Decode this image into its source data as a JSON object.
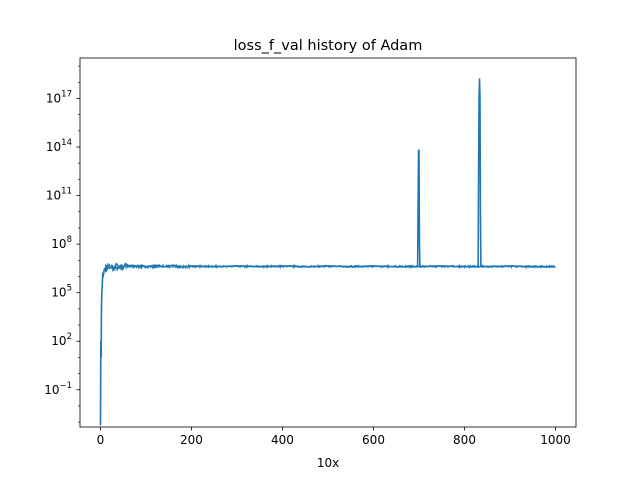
{
  "chart_data": {
    "type": "line",
    "title": "loss_f_val history of Adam",
    "xlabel": "10x",
    "ylabel": "",
    "yscale": "log",
    "xlim": [
      -45,
      1045
    ],
    "ylim_log10": [
      -3.3,
      19.5
    ],
    "grid": false,
    "series_color": "#1f77b4",
    "x_ticks": [
      0,
      200,
      400,
      600,
      800,
      1000
    ],
    "y_ticks": [
      {
        "exp": -1,
        "base": "10",
        "sup": "−1"
      },
      {
        "exp": 2,
        "base": "10",
        "sup": "2"
      },
      {
        "exp": 5,
        "base": "10",
        "sup": "5"
      },
      {
        "exp": 8,
        "base": "10",
        "sup": "8"
      },
      {
        "exp": 11,
        "base": "10",
        "sup": "11"
      },
      {
        "exp": 14,
        "base": "10",
        "sup": "14"
      },
      {
        "exp": 17,
        "base": "10",
        "sup": "17"
      }
    ],
    "series": [
      {
        "x": [
          0,
          0.3,
          0.6,
          1,
          1.5,
          2,
          2.5,
          3,
          4,
          5,
          6,
          8,
          10,
          12,
          15,
          20,
          25,
          30,
          35,
          40,
          45,
          50,
          55,
          60,
          65,
          70,
          80,
          90,
          100,
          120,
          140,
          160,
          180,
          200,
          250,
          300,
          350,
          400,
          450,
          500,
          550,
          600,
          650,
          697,
          698,
          699,
          700,
          701,
          702,
          750,
          800,
          830,
          831,
          832,
          833,
          834,
          835,
          836,
          900,
          950,
          1000
        ],
        "log10_y": [
          -3.2,
          -1.5,
          1.5,
          2.0,
          1.0,
          3.5,
          4.5,
          5.0,
          5.5,
          6.2,
          6.0,
          6.4,
          6.5,
          6.3,
          6.6,
          6.5,
          6.7,
          6.5,
          6.8,
          6.6,
          6.7,
          6.6,
          6.8,
          6.7,
          6.6,
          6.7,
          6.6,
          6.7,
          6.6,
          6.7,
          6.6,
          6.7,
          6.6,
          6.65,
          6.6,
          6.65,
          6.6,
          6.65,
          6.6,
          6.65,
          6.6,
          6.65,
          6.6,
          6.6,
          10.5,
          13.8,
          13.8,
          8.0,
          6.6,
          6.65,
          6.6,
          6.6,
          13.0,
          17.2,
          18.2,
          17.0,
          10.0,
          6.6,
          6.65,
          6.6,
          6.6
        ]
      }
    ]
  }
}
